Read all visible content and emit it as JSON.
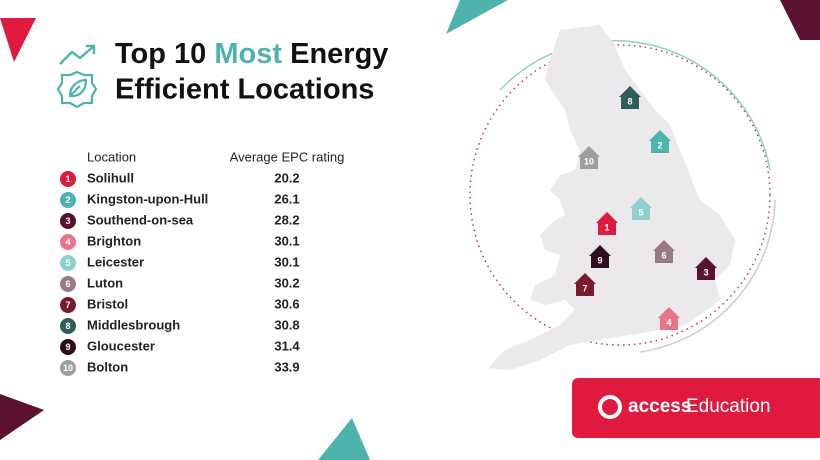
{
  "title_parts": [
    "Top 10",
    "Most",
    "Energy",
    "Efficient Locations"
  ],
  "table": {
    "headers": [
      "Location",
      "Average EPC rating"
    ],
    "rows": [
      {
        "rank": 1,
        "location": "Solihull",
        "rating": "20.2",
        "color": "#e0193f"
      },
      {
        "rank": 2,
        "location": "Kingston-upon-Hull",
        "rating": "26.1",
        "color": "#4fb3ad"
      },
      {
        "rank": 3,
        "location": "Southend-on-sea",
        "rating": "28.2",
        "color": "#5a1230"
      },
      {
        "rank": 4,
        "location": "Brighton",
        "rating": "30.1",
        "color": "#e8768a"
      },
      {
        "rank": 5,
        "location": "Leicester",
        "rating": "30.1",
        "color": "#8fd0cc"
      },
      {
        "rank": 6,
        "location": "Luton",
        "rating": "30.2",
        "color": "#9a7a86"
      },
      {
        "rank": 7,
        "location": "Bristol",
        "rating": "30.6",
        "color": "#7a1b2c"
      },
      {
        "rank": 8,
        "location": "Middlesbrough",
        "rating": "30.8",
        "color": "#2f5d57"
      },
      {
        "rank": 9,
        "location": "Gloucester",
        "rating": "31.4",
        "color": "#2e0d1c"
      },
      {
        "rank": 10,
        "location": "Bolton",
        "rating": "33.9",
        "color": "#9e9e9e"
      }
    ]
  },
  "logo": {
    "brand": "access",
    "product": "Education"
  }
}
